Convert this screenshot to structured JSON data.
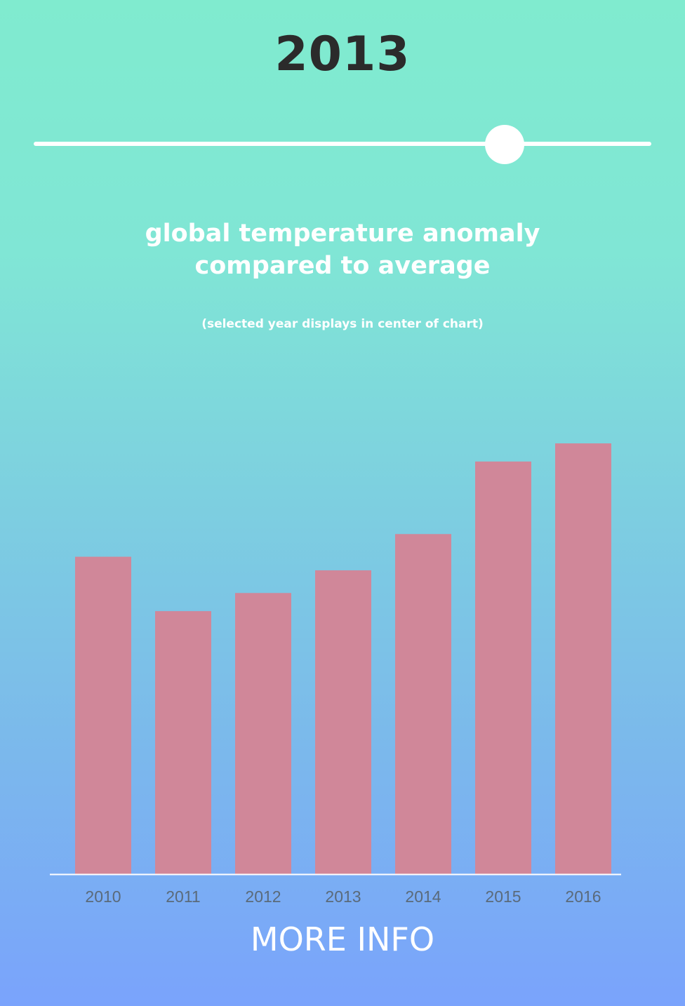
{
  "selected_year": "2013",
  "slider": {
    "value_fraction": 0.7625
  },
  "chart_data": {
    "type": "bar",
    "title_lines": [
      "global temperature anomaly",
      "compared to average"
    ],
    "subtitle": "(selected year displays in center of chart)",
    "categories": [
      "2010",
      "2011",
      "2012",
      "2013",
      "2014",
      "2015",
      "2016"
    ],
    "values": [
      0.7,
      0.58,
      0.62,
      0.67,
      0.75,
      0.91,
      0.95
    ],
    "ylim": [
      0,
      0.95
    ],
    "bar_color": "#d08799",
    "axis_color": "#ffffff",
    "tick_label_color": "#5a6a7a",
    "grid": false
  },
  "footer": {
    "more_info_label": "MORE INFO"
  }
}
